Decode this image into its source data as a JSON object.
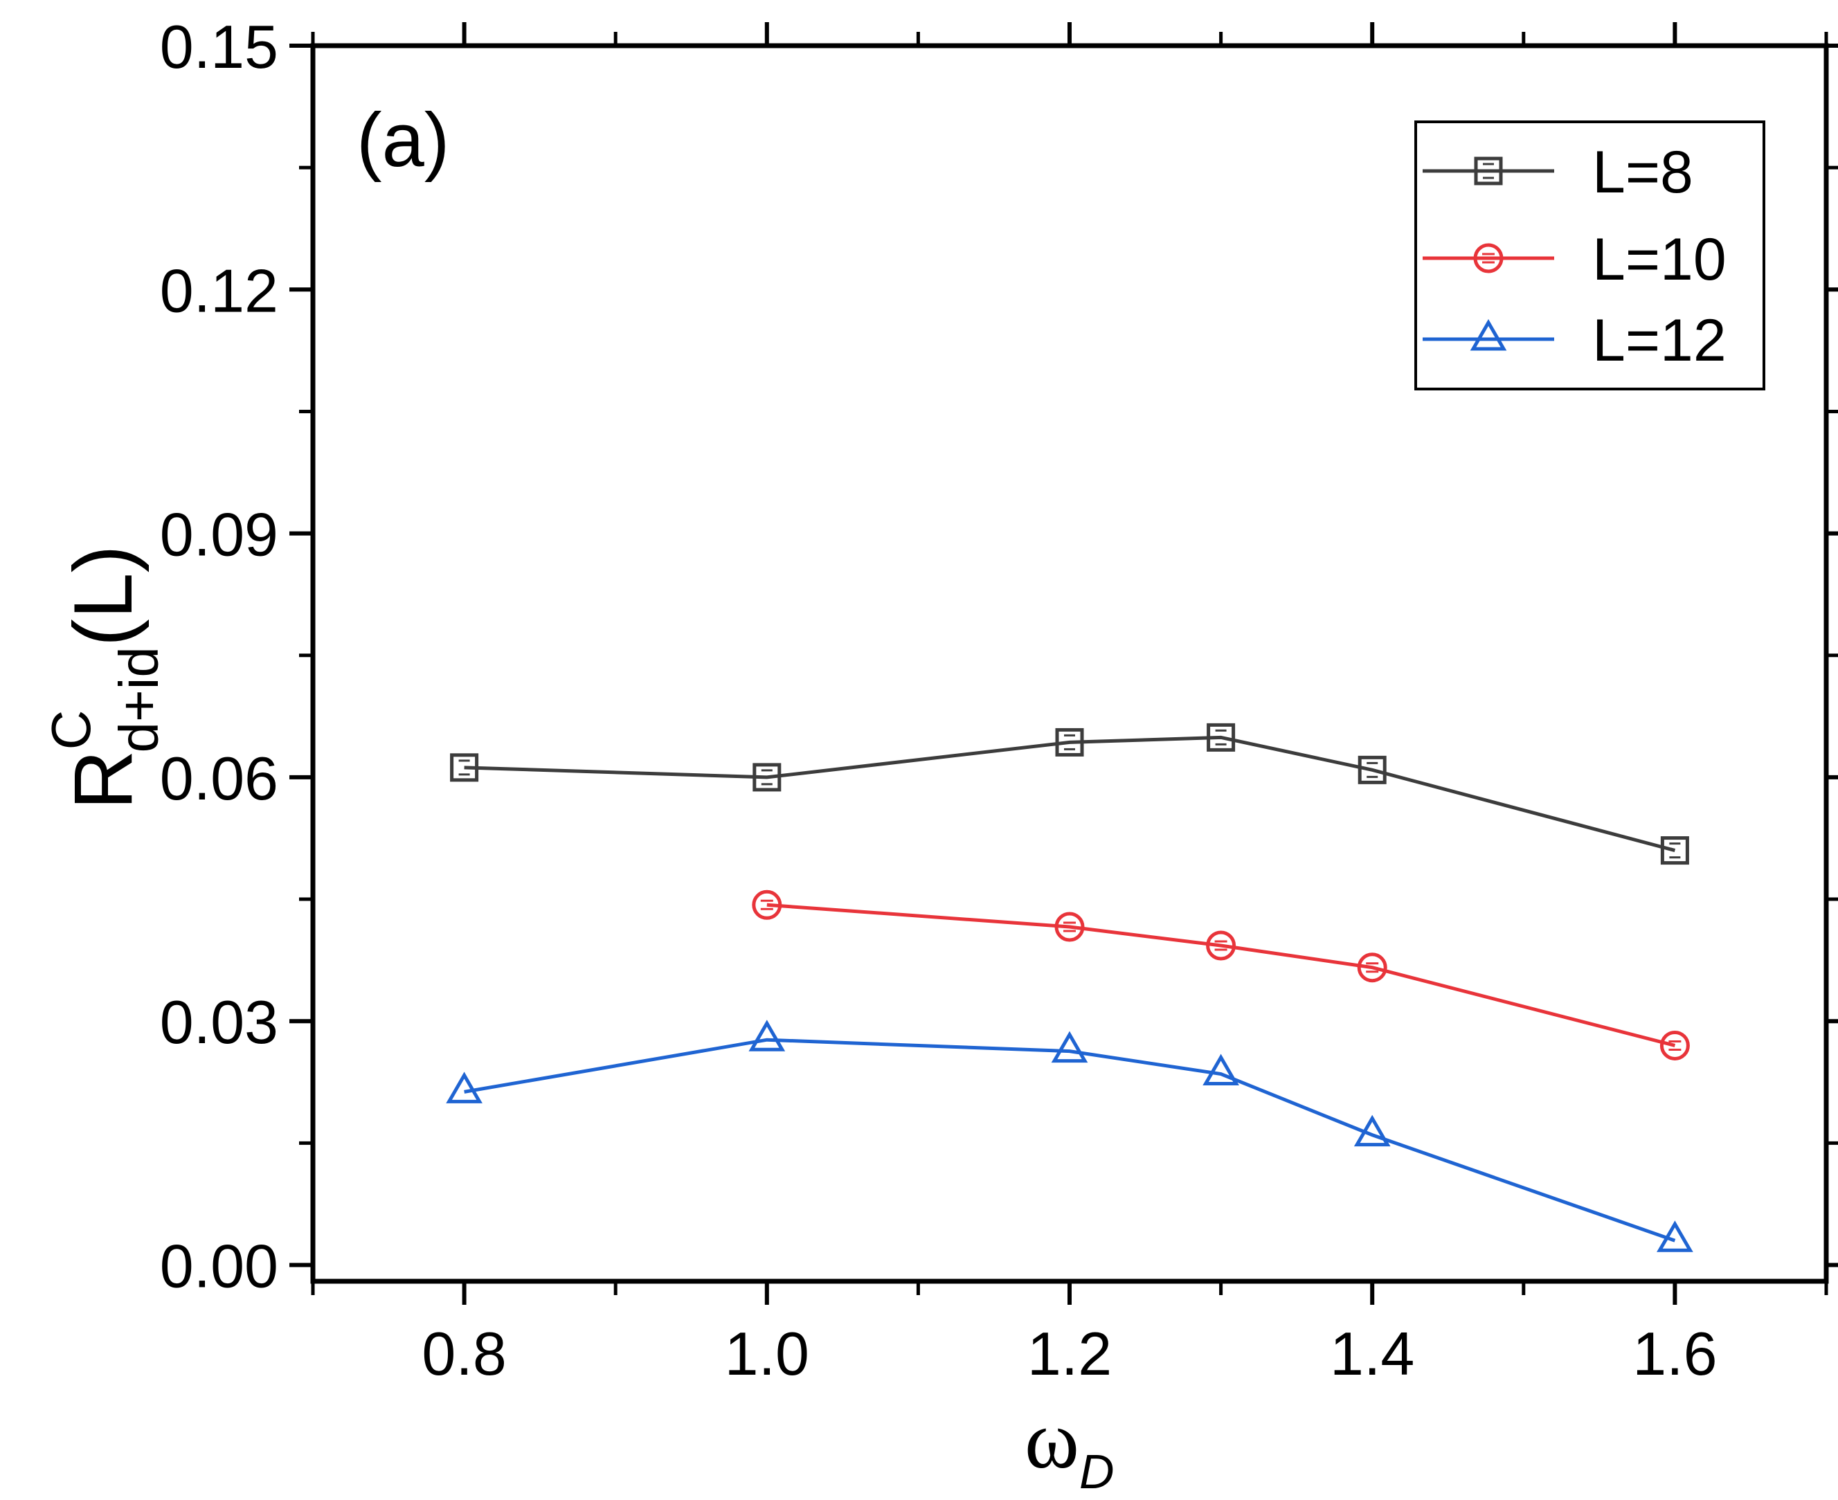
{
  "chart_data": {
    "type": "line",
    "panel_label": "(a)",
    "xlabel": {
      "main": "ω",
      "sub": "D"
    },
    "ylabel": {
      "main": "R",
      "sup": "C",
      "sub": "d+id",
      "suffix": "(L)"
    },
    "xlim": [
      0.7,
      1.7
    ],
    "ylim": [
      -0.002,
      0.15
    ],
    "x_ticks": [
      "0.8",
      "1.0",
      "1.2",
      "1.4",
      "1.6"
    ],
    "y_ticks": [
      "0.00",
      "0.03",
      "0.06",
      "0.09",
      "0.12",
      "0.15"
    ],
    "legend_position": "top-right",
    "series": [
      {
        "name": "L=8",
        "marker": "square",
        "color": "#3c3c3c",
        "x": [
          0.8,
          1.0,
          1.2,
          1.3,
          1.4,
          1.6
        ],
        "y": [
          0.0612,
          0.06,
          0.0643,
          0.0649,
          0.0609,
          0.051
        ]
      },
      {
        "name": "L=10",
        "marker": "circle",
        "color": "#e8343a",
        "x": [
          1.0,
          1.2,
          1.3,
          1.4,
          1.6
        ],
        "y": [
          0.0443,
          0.0416,
          0.0393,
          0.0366,
          0.027
        ]
      },
      {
        "name": "L=12",
        "marker": "triangle",
        "color": "#1f64d2",
        "x": [
          0.8,
          1.0,
          1.2,
          1.3,
          1.4,
          1.6
        ],
        "y": [
          0.0213,
          0.0277,
          0.0263,
          0.0235,
          0.016,
          0.003
        ]
      }
    ]
  }
}
